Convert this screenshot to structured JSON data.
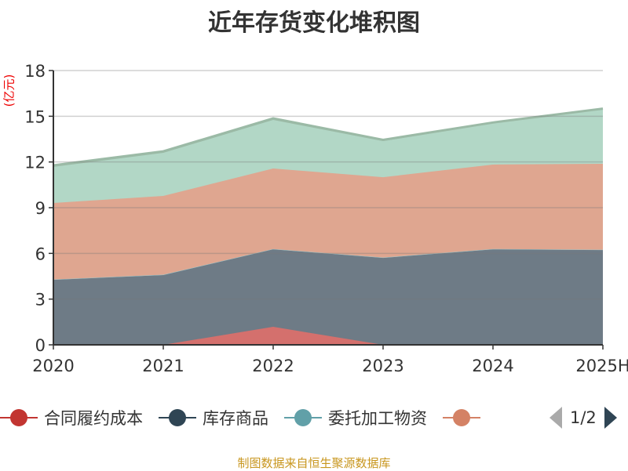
{
  "chart_data": {
    "type": "area",
    "stacked": true,
    "title": "近年存货变化堆积图",
    "ylabel": "(亿元)",
    "xlabel": "",
    "categories": [
      "2020",
      "2021",
      "2022",
      "2023",
      "2024",
      "2025H"
    ],
    "ylim": [
      0,
      18
    ],
    "yticks": [
      "0",
      "3",
      "6",
      "9",
      "12",
      "15",
      "18"
    ],
    "grid": true,
    "legend_position": "bottom",
    "series": [
      {
        "name": "合同履约成本",
        "color": "#c23531",
        "fill": "#d4706d",
        "values": [
          0,
          0,
          1.18,
          0,
          0,
          0
        ]
      },
      {
        "name": "库存商品",
        "color": "#2f4554",
        "fill": "#6e7b86",
        "values": [
          4.27,
          4.58,
          5.09,
          5.71,
          6.27,
          6.22
        ]
      },
      {
        "name": "委托加工物资",
        "color": "#61a0a8",
        "fill": "#9cc4c8",
        "values": [
          0.02,
          0.02,
          0.02,
          0.02,
          0.02,
          0.02
        ]
      },
      {
        "name": "",
        "color": "#d48265",
        "fill": "#dfa690",
        "values": [
          5.02,
          5.17,
          5.28,
          5.27,
          5.54,
          5.64
        ]
      },
      {
        "name": "",
        "color": "#91c7ae",
        "fill": "#b2d7c6",
        "values": [
          2.37,
          2.83,
          3.19,
          2.37,
          2.72,
          3.6
        ]
      },
      {
        "name": "",
        "color": "#9bbaa6",
        "fill": "#9bbaa6",
        "values": [
          0.1,
          0.1,
          0.1,
          0.08,
          0.04,
          0.02
        ]
      }
    ]
  },
  "legend": {
    "page": "1/2"
  },
  "source": "制图数据来自恒生聚源数据库"
}
